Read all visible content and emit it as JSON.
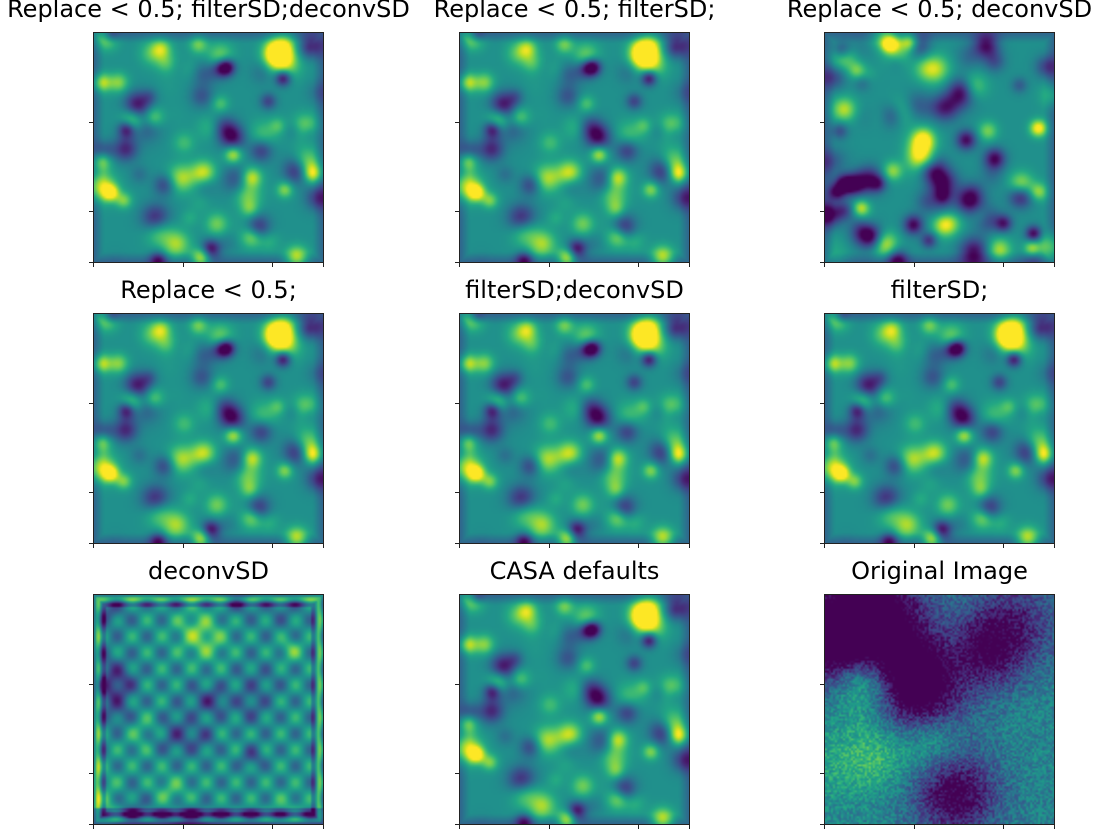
{
  "figure": {
    "colormap": "viridis",
    "colors": {
      "background": "#ffffff",
      "low": "#440154",
      "mid": "#21918c",
      "high": "#fde725"
    }
  },
  "chart_data": [
    {
      "type": "heatmap",
      "title": "Replace < 0.5; filterSD;deconvSD",
      "pattern": "clean_a",
      "seed": 11,
      "axes_ticks_labeled": false
    },
    {
      "type": "heatmap",
      "title": "Replace < 0.5; filterSD;",
      "pattern": "clean_a",
      "seed": 11,
      "axes_ticks_labeled": false
    },
    {
      "type": "heatmap",
      "title": "Replace < 0.5; deconvSD",
      "pattern": "clean_b",
      "seed": 23,
      "axes_ticks_labeled": false
    },
    {
      "type": "heatmap",
      "title": "Replace < 0.5;",
      "pattern": "clean_a",
      "seed": 11,
      "axes_ticks_labeled": false
    },
    {
      "type": "heatmap",
      "title": "filterSD;deconvSD",
      "pattern": "clean_a",
      "seed": 11,
      "axes_ticks_labeled": false
    },
    {
      "type": "heatmap",
      "title": "filterSD;",
      "pattern": "clean_a",
      "seed": 11,
      "axes_ticks_labeled": false
    },
    {
      "type": "heatmap",
      "title": "deconvSD",
      "pattern": "ripple",
      "seed": 37,
      "axes_ticks_labeled": false
    },
    {
      "type": "heatmap",
      "title": "CASA defaults",
      "pattern": "clean_a",
      "seed": 11,
      "axes_ticks_labeled": false
    },
    {
      "type": "heatmap",
      "title": "Original Image",
      "pattern": "noise",
      "seed": 53,
      "axes_ticks_labeled": false
    }
  ]
}
